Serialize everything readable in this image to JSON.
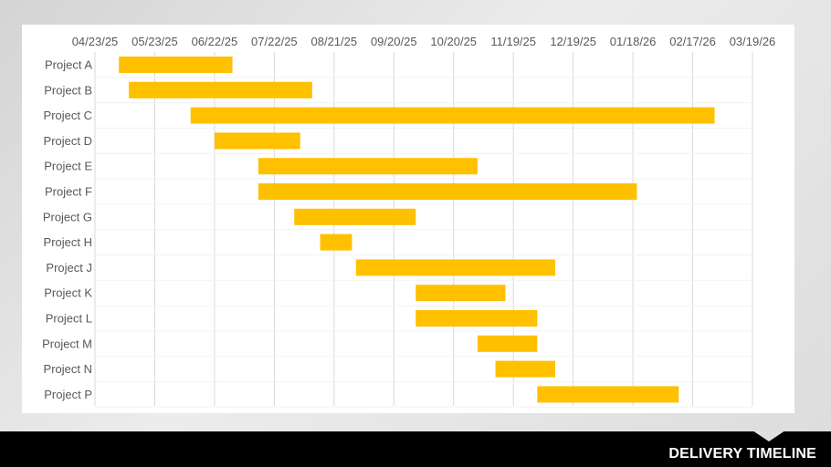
{
  "footer": {
    "title": "DELIVERY TIMELINE"
  },
  "colors": {
    "bar": "#FFC000",
    "grid": "#d9d9d9",
    "text": "#595959",
    "footer_bg": "#000000"
  },
  "chart_data": {
    "type": "gantt",
    "title": "",
    "xlabel": "",
    "ylabel": "",
    "x_ticks": [
      "04/23/25",
      "05/23/25",
      "06/22/25",
      "07/22/25",
      "08/21/25",
      "09/20/25",
      "10/20/25",
      "11/19/25",
      "12/19/25",
      "01/18/26",
      "02/17/26",
      "03/19/26"
    ],
    "xlim": [
      "2025-04-23",
      "2026-03-19"
    ],
    "grid": true,
    "tasks": [
      {
        "name": "Project A",
        "start": "2025-05-05",
        "end": "2025-07-01"
      },
      {
        "name": "Project B",
        "start": "2025-05-10",
        "end": "2025-08-10"
      },
      {
        "name": "Project C",
        "start": "2025-06-10",
        "end": "2026-02-28"
      },
      {
        "name": "Project D",
        "start": "2025-06-22",
        "end": "2025-08-04"
      },
      {
        "name": "Project E",
        "start": "2025-07-14",
        "end": "2025-11-01"
      },
      {
        "name": "Project F",
        "start": "2025-07-14",
        "end": "2026-01-20"
      },
      {
        "name": "Project G",
        "start": "2025-08-01",
        "end": "2025-10-01"
      },
      {
        "name": "Project H",
        "start": "2025-08-14",
        "end": "2025-08-30"
      },
      {
        "name": "Project J",
        "start": "2025-09-01",
        "end": "2025-12-10"
      },
      {
        "name": "Project K",
        "start": "2025-10-01",
        "end": "2025-11-15"
      },
      {
        "name": "Project L",
        "start": "2025-10-01",
        "end": "2025-12-01"
      },
      {
        "name": "Project M",
        "start": "2025-11-01",
        "end": "2025-12-01"
      },
      {
        "name": "Project N",
        "start": "2025-11-10",
        "end": "2025-12-10"
      },
      {
        "name": "Project P",
        "start": "2025-12-01",
        "end": "2026-02-10"
      }
    ]
  }
}
